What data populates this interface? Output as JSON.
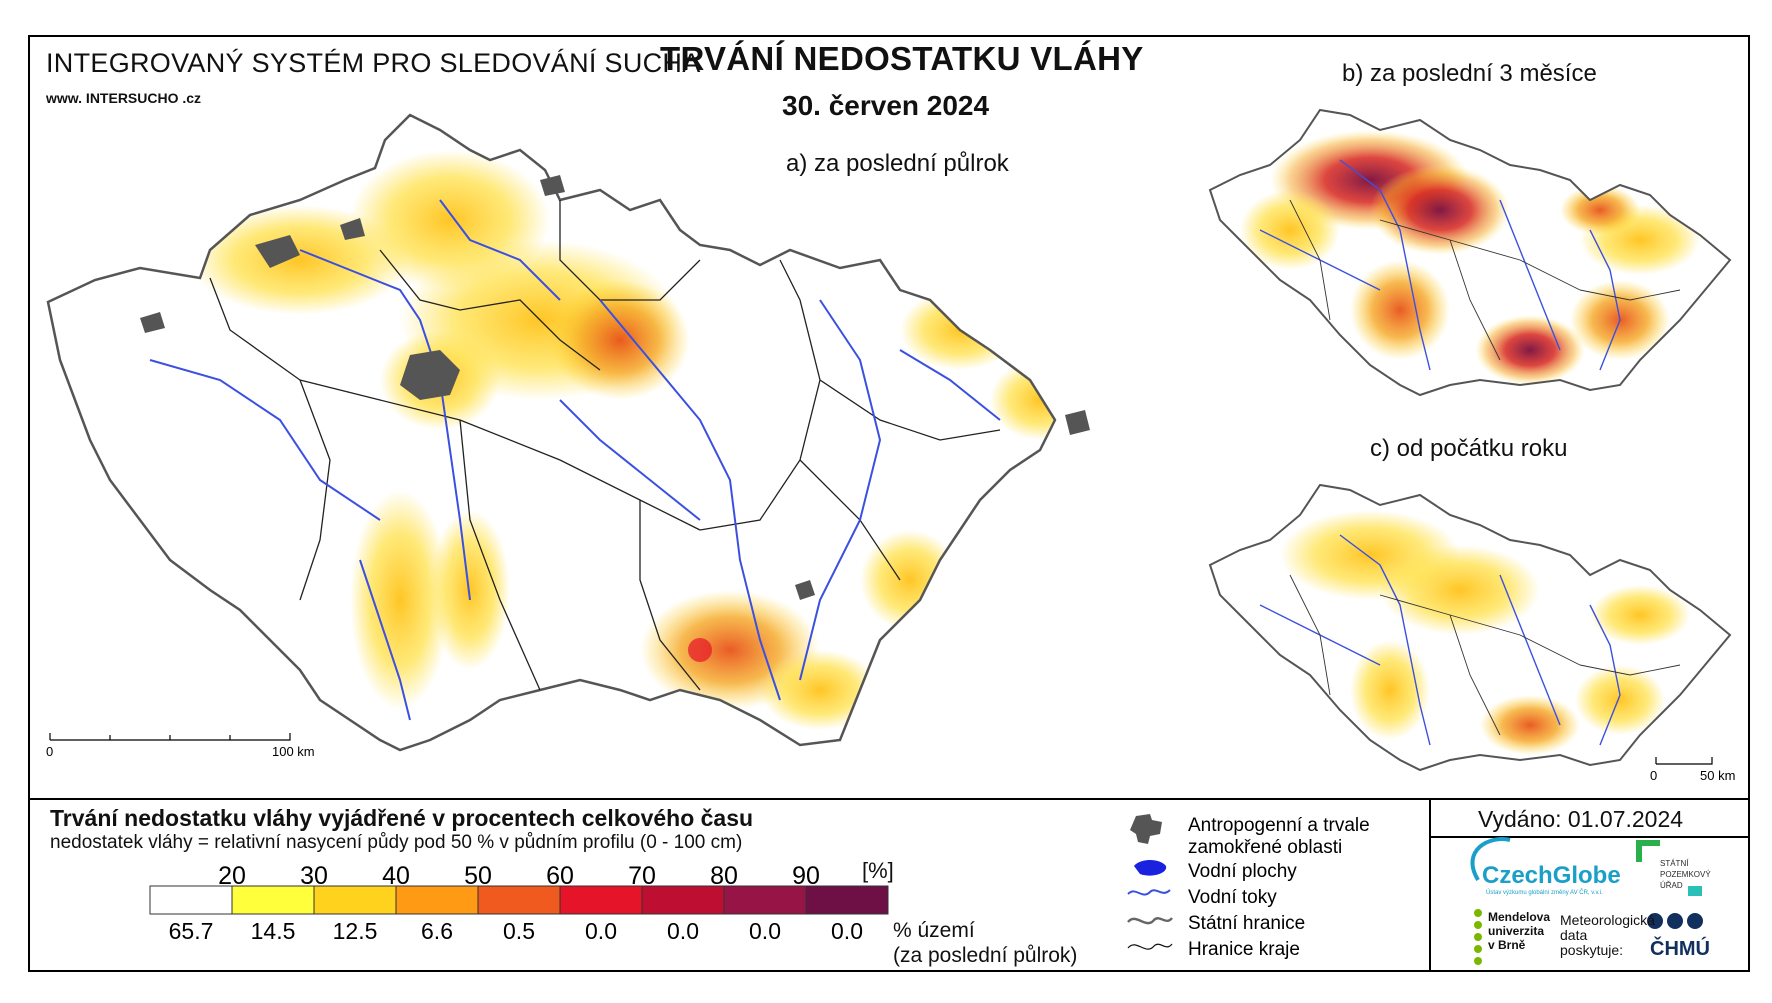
{
  "header": {
    "system_title": "INTEGROVANÝ SYSTÉM PRO SLEDOVÁNÍ SUCHA",
    "website": "www. INTERSUCHO .cz",
    "map_title": "TRVÁNÍ NEDOSTATKU VLÁHY",
    "date": "30. červen 2024"
  },
  "panels": {
    "a": "a) za poslední půlrok",
    "b": "b) za poslední 3 měsíce",
    "c": "c) od počátku roku"
  },
  "scale_bars": {
    "main": {
      "start": "0",
      "end": "100 km"
    },
    "small": {
      "start": "0",
      "end": "50 km"
    }
  },
  "legend": {
    "title": "Trvání nedostatku vláhy vyjádřené v procentech celkového času",
    "subtitle": "nedostatek vláhy = relativní nasycení půdy pod 50 % v půdním profilu (0 - 100 cm)",
    "thresholds": [
      "20",
      "30",
      "40",
      "50",
      "60",
      "70",
      "80",
      "90"
    ],
    "unit": "[%]",
    "classes": [
      {
        "color": "#ffffff",
        "pct": "65.7"
      },
      {
        "color": "#ffff3c",
        "pct": "14.5"
      },
      {
        "color": "#ffd21e",
        "pct": "12.5"
      },
      {
        "color": "#ff9a14",
        "pct": "6.6"
      },
      {
        "color": "#f05a1e",
        "pct": "0.5"
      },
      {
        "color": "#e61428",
        "pct": "0.0"
      },
      {
        "color": "#be0f32",
        "pct": "0.0"
      },
      {
        "color": "#961446",
        "pct": "0.0"
      },
      {
        "color": "#6e0f46",
        "pct": "0.0"
      }
    ],
    "area_caption_1": "% území",
    "area_caption_2": "(za poslední půlrok)"
  },
  "map_legend": {
    "urban_1": "Antropogenní a trvale",
    "urban_2": "zamokřené oblasti",
    "water_bodies": "Vodní plochy",
    "rivers": "Vodní toky",
    "state_border": "Státní hranice",
    "region_border": "Hranice kraje"
  },
  "issued": "Vydáno: 01.07.2024",
  "logos": {
    "czechglobe": "CzechGlobe",
    "czechglobe_sub": "Ústav výzkumu globální změny AV ČR, v.v.i.",
    "spu_1": "STÁTNÍ",
    "spu_2": "POZEMKOVÝ",
    "spu_3": "ÚŘAD",
    "mendelu_1": "Mendelova",
    "mendelu_2": "univerzita",
    "mendelu_3": "v Brně",
    "met_1": "Meteorologická",
    "met_2": "data",
    "met_3": "poskytuje:",
    "chmu": "ČHMÚ"
  },
  "colors": {
    "white": "#ffffff",
    "yellow": "#ffe14a",
    "orange": "#f5a623",
    "red": "#d7261e",
    "darkred": "#7a0d3c",
    "urban": "#555555",
    "river": "#3b50e0"
  }
}
